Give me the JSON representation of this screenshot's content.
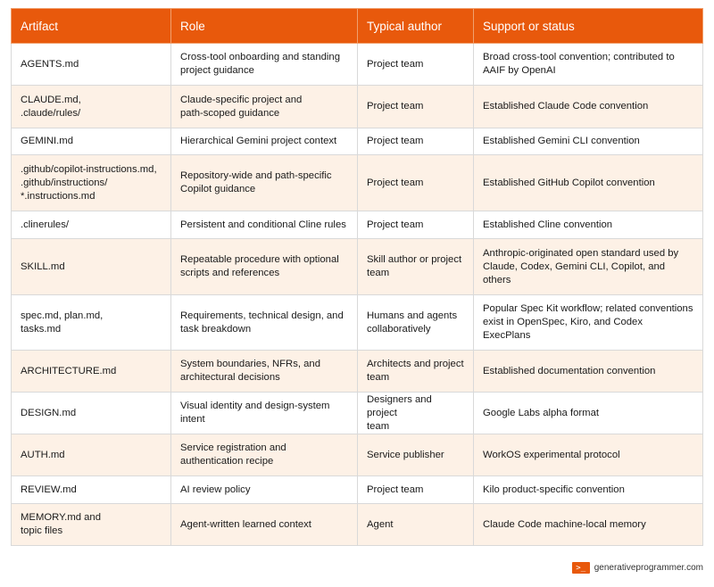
{
  "table": {
    "headers": [
      "Artifact",
      "Role",
      "Typical author",
      "Support or status"
    ],
    "rows": [
      [
        "AGENTS.md",
        "Cross-tool onboarding and standing\nproject guidance",
        "Project team",
        "Broad cross-tool convention; contributed to\nAAIF by OpenAI"
      ],
      [
        "CLAUDE.md,\n.claude/rules/",
        "Claude-specific project and\npath-scoped guidance",
        "Project team",
        "Established Claude Code convention"
      ],
      [
        "GEMINI.md",
        "Hierarchical Gemini project context",
        "Project team",
        "Established Gemini CLI convention"
      ],
      [
        ".github/copilot-instructions.md,\n.github/instructions/\n*.instructions.md",
        "Repository-wide and path-specific\nCopilot guidance",
        "Project team",
        "Established GitHub Copilot convention"
      ],
      [
        ".clinerules/",
        "Persistent and conditional Cline rules",
        "Project team",
        "Established Cline convention"
      ],
      [
        "SKILL.md",
        "Repeatable procedure with optional\nscripts and references",
        "Skill author or project\nteam",
        "Anthropic-originated open standard used by\nClaude, Codex, Gemini CLI, Copilot, and\nothers"
      ],
      [
        "spec.md, plan.md,\ntasks.md",
        "Requirements, technical design, and\ntask breakdown",
        "Humans and agents\ncollaboratively",
        "Popular Spec Kit workflow; related conventions\nexist in OpenSpec, Kiro, and Codex\nExecPlans"
      ],
      [
        "ARCHITECTURE.md",
        "System boundaries, NFRs, and\narchitectural decisions",
        "Architects and project\nteam",
        "Established documentation convention"
      ],
      [
        "DESIGN.md",
        "Visual identity and design-system\nintent",
        "Designers and project\nteam",
        "Google Labs alpha format"
      ],
      [
        "AUTH.md",
        "Service registration and\nauthentication recipe",
        "Service publisher",
        "WorkOS experimental protocol"
      ],
      [
        "REVIEW.md",
        "AI review policy",
        "Project team",
        "Kilo product-specific convention"
      ],
      [
        "MEMORY.md and\ntopic files",
        "Agent-written learned context",
        "Agent",
        "Claude Code machine-local memory"
      ]
    ]
  },
  "footer": {
    "logo_glyph": ">_",
    "site": "generativeprogrammer.com"
  },
  "colors": {
    "header_bg": "#e8590c",
    "alt_row_bg": "#fdf1e6"
  }
}
